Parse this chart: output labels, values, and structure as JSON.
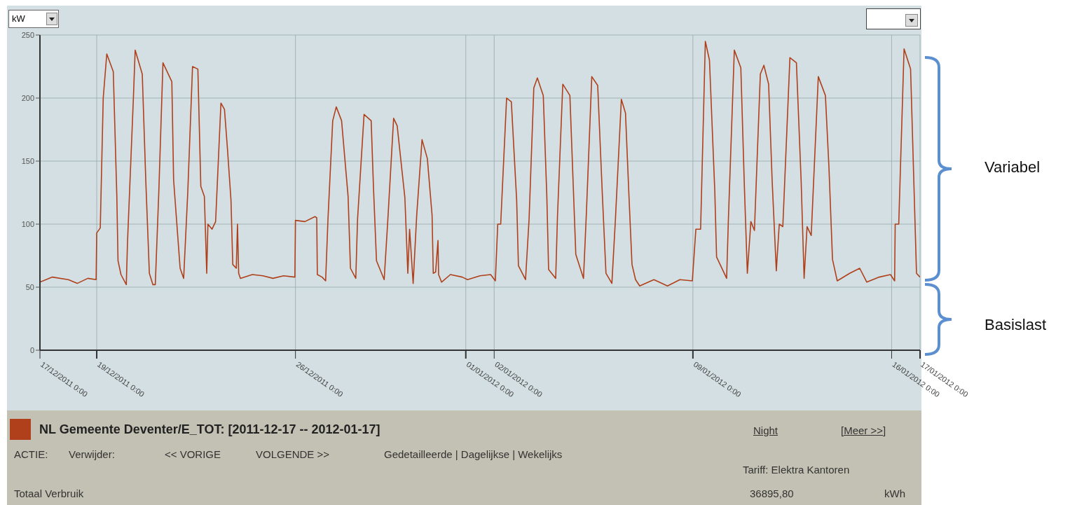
{
  "chart_data": {
    "type": "line",
    "ylabel": "kW",
    "ylim": [
      0,
      250
    ],
    "yticks": [
      0,
      50,
      100,
      150,
      200,
      250
    ],
    "xlim": [
      "2011-12-17T00:00",
      "2012-01-17T00:00"
    ],
    "xticks": [
      {
        "value": "2011-12-17T00:00",
        "label": "17/12/2011 0:00"
      },
      {
        "value": "2011-12-19T00:00",
        "label": "19/12/2011 0:00"
      },
      {
        "value": "2011-12-26T00:00",
        "label": "26/12/2011 0:00"
      },
      {
        "value": "2012-01-01T00:00",
        "label": "01/01/2012 0:00"
      },
      {
        "value": "2012-01-02T00:00",
        "label": "02/01/2012 0:00"
      },
      {
        "value": "2012-01-09T00:00",
        "label": "09/01/2012 0:00"
      },
      {
        "value": "2012-01-16T00:00",
        "label": "16/01/2012 0:00"
      },
      {
        "value": "2012-01-17T00:00",
        "label": "17/01/2012 0:00"
      }
    ],
    "grid": true,
    "legend": "bottom",
    "marker": "none",
    "line_style": "solid",
    "x": [
      "2011-12-17T00:00",
      "2011-12-17T10:30",
      "2011-12-18T00:00",
      "2011-12-18T07:30",
      "2011-12-18T16:30",
      "2011-12-18T23:30",
      "2011-12-19T00:00",
      "2011-12-19T03:00",
      "2011-12-19T05:30",
      "2011-12-19T08:30",
      "2011-12-19T14:00",
      "2011-12-19T17:00",
      "2011-12-19T18:00",
      "2011-12-19T20:30",
      "2011-12-20T01:00",
      "2011-12-20T02:00",
      "2011-12-20T07:00",
      "2011-12-20T08:30",
      "2011-12-20T14:30",
      "2011-12-20T17:30",
      "2011-12-20T20:30",
      "2011-12-20T23:30",
      "2011-12-21T01:30",
      "2011-12-21T04:30",
      "2011-12-21T08:00",
      "2011-12-21T15:30",
      "2011-12-21T17:00",
      "2011-12-21T22:30",
      "2011-12-22T01:30",
      "2011-12-22T05:00",
      "2011-12-22T09:00",
      "2011-12-22T13:30",
      "2011-12-22T16:00",
      "2011-12-22T19:00",
      "2011-12-22T21:00",
      "2011-12-22T22:00",
      "2011-12-23T01:30",
      "2011-12-23T04:30",
      "2011-12-23T09:00",
      "2011-12-23T12:00",
      "2011-12-23T14:30",
      "2011-12-23T17:30",
      "2011-12-23T19:00",
      "2011-12-23T22:00",
      "2011-12-23T23:00",
      "2011-12-24T00:00",
      "2011-12-24T01:30",
      "2011-12-24T11:30",
      "2011-12-24T20:30",
      "2011-12-25T05:00",
      "2011-12-25T14:00",
      "2011-12-25T23:30",
      "2011-12-26T00:00",
      "2011-12-26T08:00",
      "2011-12-26T16:30",
      "2011-12-26T18:00",
      "2011-12-26T18:30",
      "2011-12-26T22:30",
      "2011-12-27T01:30",
      "2011-12-27T03:30",
      "2011-12-27T07:30",
      "2011-12-27T10:30",
      "2011-12-27T15:00",
      "2011-12-27T20:30",
      "2011-12-27T22:30",
      "2011-12-28T03:00",
      "2011-12-28T04:30",
      "2011-12-28T10:00",
      "2011-12-28T16:00",
      "2011-12-28T18:00",
      "2011-12-28T20:30",
      "2011-12-29T03:00",
      "2011-12-29T06:00",
      "2011-12-29T11:00",
      "2011-12-29T14:00",
      "2011-12-29T20:30",
      "2011-12-29T23:00",
      "2011-12-30T00:30",
      "2011-12-30T03:30",
      "2011-12-30T06:30",
      "2011-12-30T11:00",
      "2011-12-30T15:30",
      "2011-12-30T19:30",
      "2011-12-30T20:30",
      "2011-12-30T22:30",
      "2011-12-31T00:30",
      "2011-12-31T01:00",
      "2011-12-31T03:30",
      "2011-12-31T11:00",
      "2011-12-31T21:00",
      "2012-01-01T01:30",
      "2012-01-01T12:00",
      "2012-01-01T21:00",
      "2012-01-02T01:00",
      "2012-01-02T03:00",
      "2012-01-02T05:30",
      "2012-01-02T10:30",
      "2012-01-02T14:30",
      "2012-01-02T19:00",
      "2012-01-02T20:30",
      "2012-01-03T02:30",
      "2012-01-03T05:30",
      "2012-01-03T09:30",
      "2012-01-03T12:30",
      "2012-01-03T17:30",
      "2012-01-03T20:30",
      "2012-01-03T22:00",
      "2012-01-04T04:00",
      "2012-01-04T05:30",
      "2012-01-04T10:00",
      "2012-01-04T16:00",
      "2012-01-04T21:00",
      "2012-01-05T03:30",
      "2012-01-05T06:00",
      "2012-01-05T10:30",
      "2012-01-05T15:30",
      "2012-01-05T19:30",
      "2012-01-05T22:30",
      "2012-01-06T03:30",
      "2012-01-06T06:30",
      "2012-01-06T11:30",
      "2012-01-06T15:00",
      "2012-01-06T18:00",
      "2012-01-06T20:30",
      "2012-01-06T23:30",
      "2012-01-07T03:00",
      "2012-01-07T15:00",
      "2012-01-08T02:30",
      "2012-01-08T13:00",
      "2012-01-08T23:30",
      "2012-01-09T02:30",
      "2012-01-09T06:30",
      "2012-01-09T10:30",
      "2012-01-09T14:00",
      "2012-01-09T18:30",
      "2012-01-09T20:00",
      "2012-01-10T04:30",
      "2012-01-10T06:00",
      "2012-01-10T11:00",
      "2012-01-10T16:30",
      "2012-01-10T19:30",
      "2012-01-10T22:00",
      "2012-01-11T01:00",
      "2012-01-11T04:00",
      "2012-01-11T09:00",
      "2012-01-11T12:00",
      "2012-01-11T16:00",
      "2012-01-11T19:00",
      "2012-01-11T22:30",
      "2012-01-12T01:00",
      "2012-01-12T04:00",
      "2012-01-12T10:00",
      "2012-01-12T15:30",
      "2012-01-12T19:30",
      "2012-01-12T22:00",
      "2012-01-13T00:30",
      "2012-01-13T04:00",
      "2012-01-13T10:00",
      "2012-01-13T16:00",
      "2012-01-13T19:00",
      "2012-01-13T22:00",
      "2012-01-14T02:00",
      "2012-01-14T12:30",
      "2012-01-14T21:00",
      "2012-01-15T03:00",
      "2012-01-15T13:30",
      "2012-01-15T23:00",
      "2012-01-16T02:30",
      "2012-01-16T03:00",
      "2012-01-16T06:00",
      "2012-01-16T10:30",
      "2012-01-16T16:00",
      "2012-01-16T19:00",
      "2012-01-16T21:00",
      "2012-01-17T00:00"
    ],
    "series": [
      {
        "name": "NL Gemeente Deventer/E_TOT: [2011-12-17 -- 2012-01-17]",
        "color": "#b0401c",
        "values": [
          54,
          58,
          56,
          53,
          57,
          56,
          93,
          97,
          200,
          235,
          221,
          122,
          71,
          60,
          52,
          85,
          200,
          238,
          219,
          134,
          61,
          52,
          52,
          126,
          228,
          213,
          135,
          65,
          57,
          126,
          225,
          223,
          130,
          122,
          61,
          100,
          96,
          102,
          196,
          191,
          160,
          119,
          68,
          65,
          100,
          61,
          57,
          60,
          59,
          57,
          59,
          58,
          103,
          102,
          106,
          105,
          60,
          58,
          55,
          104,
          182,
          193,
          182,
          122,
          65,
          57,
          104,
          187,
          182,
          128,
          71,
          56,
          102,
          184,
          178,
          121,
          61,
          96,
          53,
          107,
          167,
          152,
          107,
          61,
          62,
          87,
          60,
          54,
          60,
          58,
          56,
          59,
          60,
          55,
          100,
          100,
          200,
          197,
          119,
          67,
          56,
          104,
          208,
          216,
          202,
          122,
          64,
          57,
          106,
          211,
          202,
          76,
          57,
          110,
          217,
          210,
          122,
          61,
          53,
          104,
          199,
          188,
          121,
          68,
          56,
          51,
          56,
          51,
          56,
          55,
          96,
          96,
          245,
          230,
          126,
          74,
          57,
          104,
          238,
          224,
          130,
          61,
          102,
          95,
          219,
          226,
          211,
          134,
          63,
          100,
          98,
          232,
          228,
          134,
          57,
          98,
          91,
          217,
          202,
          145,
          72,
          55,
          61,
          65,
          54,
          58,
          60,
          55,
          100,
          100,
          239,
          223,
          126,
          61,
          58
        ]
      }
    ],
    "annotations": [
      "Variabel",
      "Basislast",
      "ACTIE:",
      "Verwijder:",
      "<< VORIGE",
      "VOLGENDE >>",
      "Gedetailleerde | Dagelijkse | Wekelijks",
      "Tariff: Elektra Kantoren",
      "Totaal Verbruik",
      "36895,80",
      "kWh",
      "Night",
      "[Meer >>]"
    ]
  }
}
